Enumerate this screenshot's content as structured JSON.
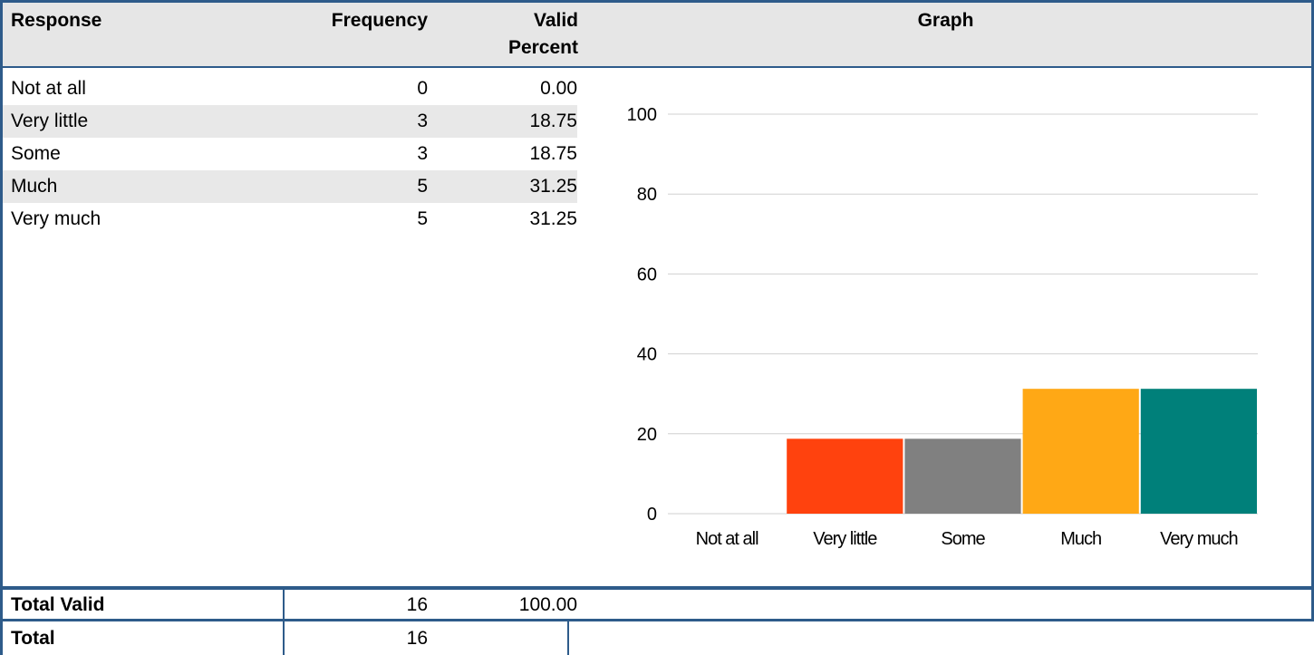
{
  "table": {
    "headers": [
      "Response",
      "Frequency",
      "Valid Percent",
      "Graph"
    ],
    "rows": [
      [
        "Not at all",
        "0",
        "0.00"
      ],
      [
        "Very little",
        "3",
        "18.75"
      ],
      [
        "Some",
        "3",
        "18.75"
      ],
      [
        "Much",
        "5",
        "31.25"
      ],
      [
        "Very much",
        "5",
        "31.25"
      ]
    ],
    "total_valid": [
      "Total Valid",
      "16",
      "100.00"
    ],
    "total": [
      "Total",
      "16"
    ]
  },
  "chart_data": {
    "type": "bar",
    "categories": [
      "Not at all",
      "Very little",
      "Some",
      "Much",
      "Very much"
    ],
    "values": [
      0,
      18.75,
      18.75,
      31.25,
      31.25
    ],
    "colors": [
      "#004586",
      "#ff420e",
      "#808080",
      "#ffa815",
      "#00807a"
    ],
    "ylim": [
      0,
      100
    ],
    "yticks": [
      0,
      20,
      40,
      60,
      80,
      100
    ],
    "grid": true
  }
}
